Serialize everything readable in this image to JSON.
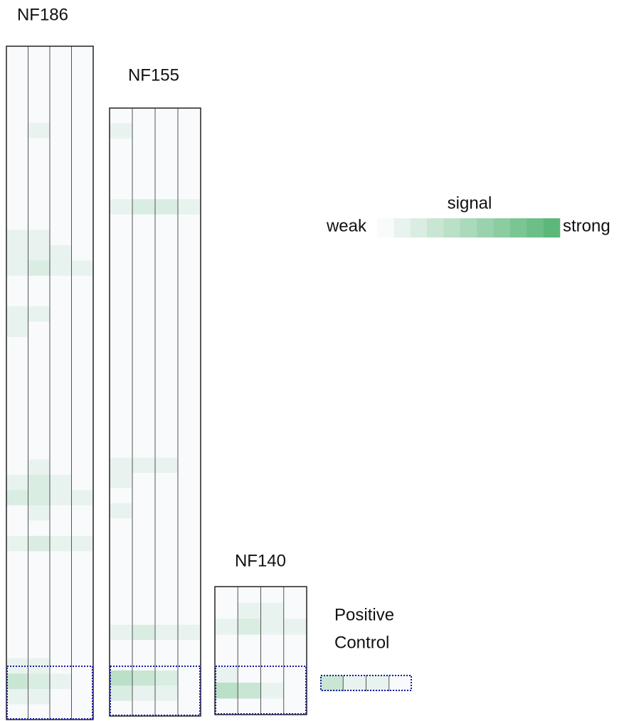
{
  "chart_data": {
    "type": "heatmap",
    "low_color": "#f8fafc",
    "high_color": "#5cb87a",
    "legend": {
      "title": "signal",
      "low_label": "weak",
      "high_label": "strong",
      "levels": [
        0,
        1,
        2,
        3,
        4,
        5,
        6,
        7,
        8,
        9,
        10
      ]
    },
    "panels": [
      {
        "title_lines": [
          "NF186"
        ],
        "rows": [
          [
            0,
            0,
            0,
            0
          ],
          [
            0,
            0,
            0,
            0
          ],
          [
            0,
            0,
            0,
            0
          ],
          [
            0,
            0,
            0,
            0
          ],
          [
            0,
            0,
            0,
            0
          ],
          [
            0,
            1,
            0,
            0
          ],
          [
            0,
            0,
            0,
            0
          ],
          [
            0,
            0,
            0,
            0
          ],
          [
            0,
            0,
            0,
            0
          ],
          [
            0,
            0,
            0,
            0
          ],
          [
            0,
            0,
            0,
            0
          ],
          [
            0,
            0,
            0,
            0
          ],
          [
            1,
            1,
            0,
            0
          ],
          [
            1,
            1,
            1,
            0
          ],
          [
            1,
            2,
            1,
            1
          ],
          [
            0,
            0,
            0,
            0
          ],
          [
            0,
            0,
            0,
            0
          ],
          [
            1,
            1,
            0,
            0
          ],
          [
            1,
            0,
            0,
            0
          ],
          [
            0,
            0,
            0,
            0
          ],
          [
            0,
            0,
            0,
            0
          ],
          [
            0,
            0,
            0,
            0
          ],
          [
            0,
            0,
            0,
            0
          ],
          [
            0,
            0,
            0,
            0
          ],
          [
            0,
            0,
            0,
            0
          ],
          [
            0,
            0,
            0,
            0
          ],
          [
            0,
            0,
            0,
            0
          ],
          [
            0,
            1,
            0,
            0
          ],
          [
            1,
            2,
            1,
            0
          ],
          [
            2,
            2,
            1,
            1
          ],
          [
            0,
            1,
            0,
            0
          ],
          [
            0,
            0,
            0,
            0
          ],
          [
            1,
            2,
            1,
            1
          ],
          [
            0,
            0,
            0,
            0
          ],
          [
            0,
            0,
            0,
            0
          ],
          [
            0,
            0,
            0,
            0
          ],
          [
            0,
            0,
            0,
            0
          ],
          [
            0,
            0,
            0,
            0
          ],
          [
            0,
            0,
            0,
            0
          ],
          [
            0,
            0,
            0,
            0
          ],
          [
            1,
            1,
            0,
            0
          ],
          [
            3,
            2,
            1,
            0
          ],
          [
            1,
            1,
            0,
            0
          ],
          [
            0,
            0,
            0,
            0
          ]
        ]
      },
      {
        "title_lines": [
          "NF155"
        ],
        "rows": [
          [
            0,
            0,
            0,
            0
          ],
          [
            1,
            0,
            0,
            0
          ],
          [
            0,
            0,
            0,
            0
          ],
          [
            0,
            0,
            0,
            0
          ],
          [
            0,
            0,
            0,
            0
          ],
          [
            0,
            0,
            0,
            0
          ],
          [
            1,
            2,
            2,
            1
          ],
          [
            0,
            0,
            0,
            0
          ],
          [
            0,
            0,
            0,
            0
          ],
          [
            0,
            0,
            0,
            0
          ],
          [
            0,
            0,
            0,
            0
          ],
          [
            0,
            0,
            0,
            0
          ],
          [
            0,
            0,
            0,
            0
          ],
          [
            0,
            0,
            0,
            0
          ],
          [
            0,
            0,
            0,
            0
          ],
          [
            0,
            0,
            0,
            0
          ],
          [
            0,
            0,
            0,
            0
          ],
          [
            0,
            0,
            0,
            0
          ],
          [
            0,
            0,
            0,
            0
          ],
          [
            0,
            0,
            0,
            0
          ],
          [
            0,
            0,
            0,
            0
          ],
          [
            0,
            0,
            0,
            0
          ],
          [
            0,
            0,
            0,
            0
          ],
          [
            1,
            1,
            1,
            0
          ],
          [
            1,
            0,
            0,
            0
          ],
          [
            0,
            0,
            0,
            0
          ],
          [
            1,
            0,
            0,
            0
          ],
          [
            0,
            0,
            0,
            0
          ],
          [
            0,
            0,
            0,
            0
          ],
          [
            0,
            0,
            0,
            0
          ],
          [
            0,
            0,
            0,
            0
          ],
          [
            0,
            0,
            0,
            0
          ],
          [
            0,
            0,
            0,
            0
          ],
          [
            0,
            0,
            0,
            0
          ],
          [
            1,
            2,
            1,
            1
          ],
          [
            0,
            0,
            0,
            0
          ],
          [
            0,
            0,
            0,
            0
          ],
          [
            4,
            3,
            2,
            0
          ],
          [
            2,
            1,
            1,
            0
          ],
          [
            0,
            0,
            0,
            0
          ]
        ]
      },
      {
        "title_lines": [
          "NF140"
        ],
        "rows": [
          [
            0,
            0,
            0,
            0
          ],
          [
            0,
            1,
            1,
            0
          ],
          [
            1,
            2,
            1,
            1
          ],
          [
            0,
            0,
            0,
            0
          ],
          [
            0,
            0,
            0,
            0
          ],
          [
            1,
            0,
            0,
            0
          ],
          [
            4,
            3,
            1,
            0
          ],
          [
            0,
            0,
            0,
            0
          ]
        ]
      },
      {
        "title_lines": [
          "Positive",
          "Control"
        ],
        "rows": [
          [
            3,
            1,
            1,
            0
          ]
        ]
      }
    ]
  }
}
